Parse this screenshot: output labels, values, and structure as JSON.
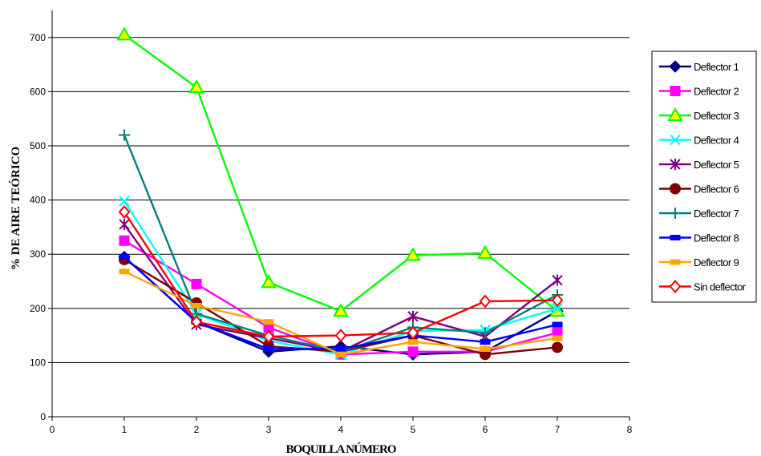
{
  "chart_data": {
    "type": "line",
    "xlabel": "BOQUILLA NÚMERO",
    "ylabel": "% DE AIRE TEÓRICO",
    "xlim": [
      0,
      8
    ],
    "ylim": [
      0,
      750
    ],
    "x_ticks": [
      0,
      1,
      2,
      3,
      4,
      5,
      6,
      7,
      8
    ],
    "y_ticks": [
      0,
      100,
      200,
      300,
      400,
      500,
      600,
      700
    ],
    "grid": "horizontal",
    "legend_position": "right",
    "x": [
      1,
      2,
      3,
      4,
      5,
      6,
      7
    ],
    "series": [
      {
        "name": "Deflector 1",
        "color": "#000080",
        "marker": "diamond",
        "values": [
          295,
          175,
          120,
          130,
          115,
          120,
          195
        ]
      },
      {
        "name": "Deflector 2",
        "color": "#ff00ff",
        "marker": "square",
        "values": [
          325,
          245,
          165,
          115,
          120,
          120,
          155
        ]
      },
      {
        "name": "Deflector 3",
        "color": "#00ff00",
        "marker": "triangle",
        "values": [
          705,
          608,
          248,
          195,
          298,
          302,
          195
        ]
      },
      {
        "name": "Deflector 4",
        "color": "#00ffff",
        "marker": "x",
        "values": [
          398,
          190,
          140,
          115,
          158,
          160,
          200
        ]
      },
      {
        "name": "Deflector 5",
        "color": "#800080",
        "marker": "star",
        "values": [
          355,
          170,
          145,
          120,
          185,
          148,
          252
        ]
      },
      {
        "name": "Deflector 6",
        "color": "#800000",
        "marker": "circle",
        "values": [
          290,
          210,
          130,
          120,
          150,
          115,
          128
        ]
      },
      {
        "name": "Deflector 7",
        "color": "#008080",
        "marker": "plus",
        "values": [
          520,
          190,
          150,
          120,
          165,
          155,
          225
        ]
      },
      {
        "name": "Deflector 8",
        "color": "#0000ff",
        "marker": "dash",
        "values": [
          295,
          175,
          125,
          125,
          150,
          138,
          170
        ]
      },
      {
        "name": "Deflector 9",
        "color": "#ffa500",
        "marker": "dash",
        "values": [
          268,
          205,
          175,
          115,
          138,
          125,
          145
        ]
      },
      {
        "name": "Sin deflector",
        "color": "#ff0000",
        "marker": "open-diamond",
        "values": [
          378,
          175,
          148,
          150,
          155,
          213,
          215
        ]
      }
    ]
  }
}
